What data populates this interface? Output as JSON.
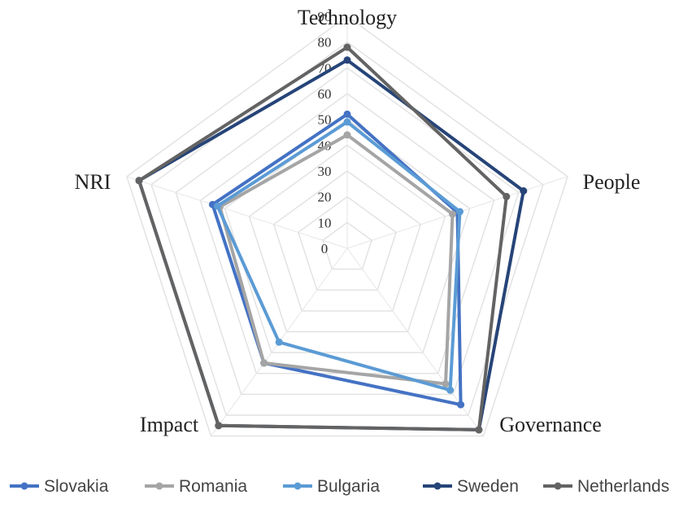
{
  "chart_data": {
    "type": "radar",
    "axes": [
      "Technology",
      "People",
      "Governance",
      "Impact",
      "NRI"
    ],
    "rlim": [
      0,
      90
    ],
    "ticks": [
      0,
      10,
      20,
      30,
      40,
      50,
      60,
      70,
      80,
      90
    ],
    "grid": true,
    "legend_position": "bottom",
    "series": [
      {
        "name": "Slovakia",
        "color": "#4472c4",
        "values": [
          52,
          45,
          75,
          55,
          55
        ]
      },
      {
        "name": "Romania",
        "color": "#a5a5a5",
        "values": [
          44,
          43,
          65,
          55,
          52
        ]
      },
      {
        "name": "Bulgaria",
        "color": "#5b9bd5",
        "values": [
          49,
          46,
          68,
          45,
          53
        ]
      },
      {
        "name": "Sweden",
        "color": "#264478",
        "values": [
          73,
          72,
          87,
          85,
          85
        ]
      },
      {
        "name": "Netherlands",
        "color": "#636363",
        "values": [
          78,
          65,
          87,
          85,
          85
        ]
      }
    ]
  }
}
